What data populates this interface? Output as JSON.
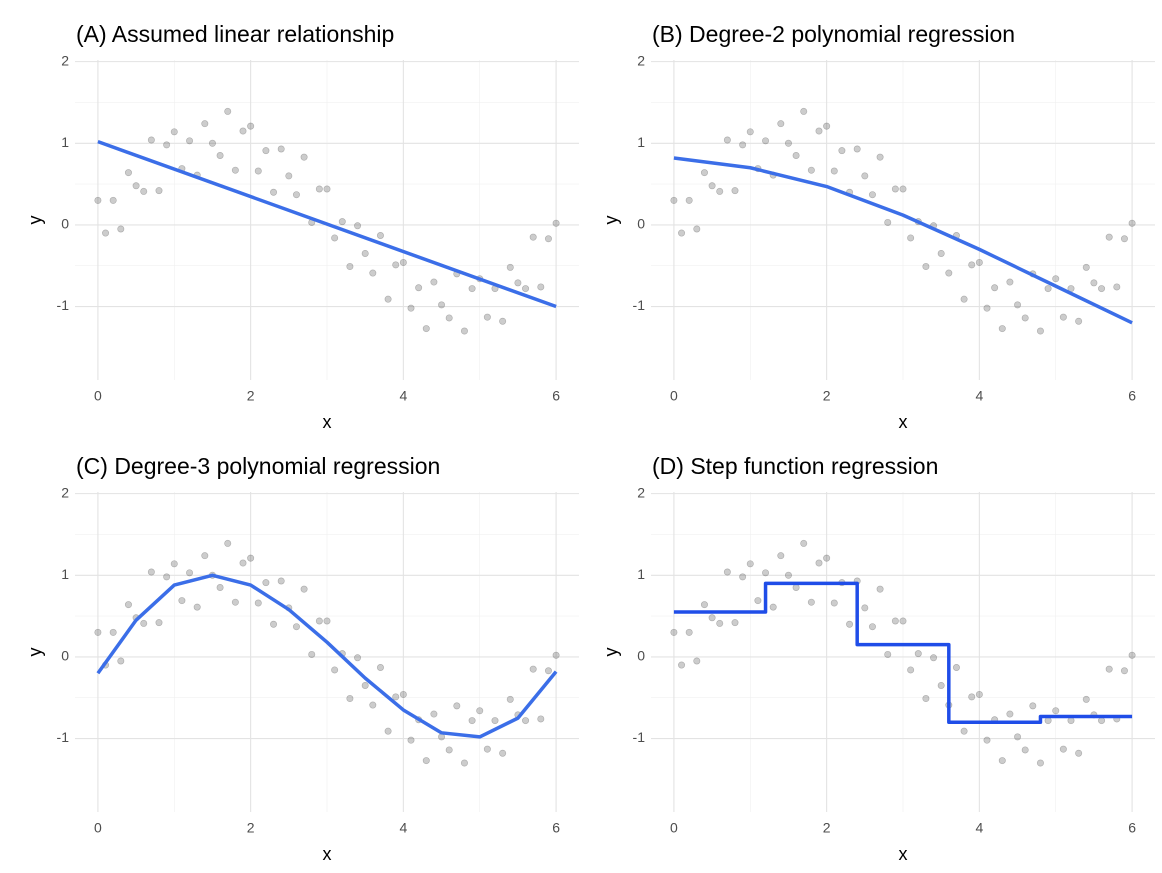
{
  "chart_data": [
    {
      "type": "scatter",
      "title": "(A) Assumed linear relationship",
      "x_label": "x",
      "y_label": "y",
      "xlim": [
        -0.3,
        6.3
      ],
      "ylim": [
        -1.9,
        2.02
      ],
      "xticks": [
        0,
        2,
        4,
        6
      ],
      "yticks": [
        -1,
        0,
        1,
        2
      ],
      "grid": true,
      "points": {
        "color": "#333333",
        "x": [
          0,
          0.1,
          0.2,
          0.3,
          0.4,
          0.5,
          0.6,
          0.7,
          0.8,
          0.9,
          1.0,
          1.1,
          1.2,
          1.3,
          1.4,
          1.5,
          1.6,
          1.7,
          1.8,
          1.9,
          2.0,
          2.1,
          2.2,
          2.3,
          2.4,
          2.5,
          2.6,
          2.7,
          2.8,
          2.9,
          3.0,
          3.1,
          3.2,
          3.3,
          3.4,
          3.5,
          3.6,
          3.7,
          3.8,
          3.9,
          4.0,
          4.1,
          4.2,
          4.3,
          4.4,
          4.5,
          4.6,
          4.7,
          4.8,
          4.9,
          5.0,
          5.1,
          5.2,
          5.3,
          5.4,
          5.5,
          5.6,
          5.7,
          5.8,
          5.9,
          6.0
        ],
        "y": [
          0.3,
          -0.1,
          0.3,
          -0.05,
          0.64,
          0.48,
          0.41,
          1.04,
          0.42,
          0.98,
          1.14,
          0.69,
          1.03,
          0.61,
          1.24,
          1.0,
          0.85,
          1.39,
          0.67,
          1.15,
          1.21,
          0.66,
          0.91,
          0.4,
          0.93,
          0.6,
          0.37,
          0.83,
          0.03,
          0.44,
          0.44,
          -0.16,
          0.04,
          -0.51,
          -0.01,
          -0.35,
          -0.59,
          -0.13,
          -0.91,
          -0.49,
          -0.46,
          -1.02,
          -0.77,
          -1.27,
          -0.7,
          -0.98,
          -1.14,
          -0.6,
          -1.3,
          -0.78,
          -0.66,
          -1.13,
          -0.78,
          -1.18,
          -0.52,
          -0.71,
          -0.78,
          -0.15,
          -0.76,
          -0.17,
          0.02
        ]
      },
      "fit": {
        "color": "#3b6ee8",
        "x": [
          0,
          6
        ],
        "y": [
          1.02,
          -1.0
        ]
      }
    },
    {
      "type": "scatter",
      "title": "(B) Degree-2 polynomial regression",
      "x_label": "x",
      "y_label": "y",
      "xlim": [
        -0.3,
        6.3
      ],
      "ylim": [
        -1.9,
        2.02
      ],
      "xticks": [
        0,
        2,
        4,
        6
      ],
      "yticks": [
        -1,
        0,
        1,
        2
      ],
      "grid": true,
      "points": {
        "color": "#333333",
        "x": [
          0,
          0.1,
          0.2,
          0.3,
          0.4,
          0.5,
          0.6,
          0.7,
          0.8,
          0.9,
          1.0,
          1.1,
          1.2,
          1.3,
          1.4,
          1.5,
          1.6,
          1.7,
          1.8,
          1.9,
          2.0,
          2.1,
          2.2,
          2.3,
          2.4,
          2.5,
          2.6,
          2.7,
          2.8,
          2.9,
          3.0,
          3.1,
          3.2,
          3.3,
          3.4,
          3.5,
          3.6,
          3.7,
          3.8,
          3.9,
          4.0,
          4.1,
          4.2,
          4.3,
          4.4,
          4.5,
          4.6,
          4.7,
          4.8,
          4.9,
          5.0,
          5.1,
          5.2,
          5.3,
          5.4,
          5.5,
          5.6,
          5.7,
          5.8,
          5.9,
          6.0
        ],
        "y": [
          0.3,
          -0.1,
          0.3,
          -0.05,
          0.64,
          0.48,
          0.41,
          1.04,
          0.42,
          0.98,
          1.14,
          0.69,
          1.03,
          0.61,
          1.24,
          1.0,
          0.85,
          1.39,
          0.67,
          1.15,
          1.21,
          0.66,
          0.91,
          0.4,
          0.93,
          0.6,
          0.37,
          0.83,
          0.03,
          0.44,
          0.44,
          -0.16,
          0.04,
          -0.51,
          -0.01,
          -0.35,
          -0.59,
          -0.13,
          -0.91,
          -0.49,
          -0.46,
          -1.02,
          -0.77,
          -1.27,
          -0.7,
          -0.98,
          -1.14,
          -0.6,
          -1.3,
          -0.78,
          -0.66,
          -1.13,
          -0.78,
          -1.18,
          -0.52,
          -0.71,
          -0.78,
          -0.15,
          -0.76,
          -0.17,
          0.02
        ]
      },
      "fit": {
        "color": "#3b6ee8",
        "x": [
          0,
          1,
          2,
          3,
          4,
          5,
          6
        ],
        "y": [
          0.82,
          0.7,
          0.47,
          0.12,
          -0.3,
          -0.75,
          -1.2
        ]
      }
    },
    {
      "type": "scatter",
      "title": "(C) Degree-3 polynomial regression",
      "x_label": "x",
      "y_label": "y",
      "xlim": [
        -0.3,
        6.3
      ],
      "ylim": [
        -1.9,
        2.02
      ],
      "xticks": [
        0,
        2,
        4,
        6
      ],
      "yticks": [
        -1,
        0,
        1,
        2
      ],
      "grid": true,
      "points": {
        "color": "#333333",
        "x": [
          0,
          0.1,
          0.2,
          0.3,
          0.4,
          0.5,
          0.6,
          0.7,
          0.8,
          0.9,
          1.0,
          1.1,
          1.2,
          1.3,
          1.4,
          1.5,
          1.6,
          1.7,
          1.8,
          1.9,
          2.0,
          2.1,
          2.2,
          2.3,
          2.4,
          2.5,
          2.6,
          2.7,
          2.8,
          2.9,
          3.0,
          3.1,
          3.2,
          3.3,
          3.4,
          3.5,
          3.6,
          3.7,
          3.8,
          3.9,
          4.0,
          4.1,
          4.2,
          4.3,
          4.4,
          4.5,
          4.6,
          4.7,
          4.8,
          4.9,
          5.0,
          5.1,
          5.2,
          5.3,
          5.4,
          5.5,
          5.6,
          5.7,
          5.8,
          5.9,
          6.0
        ],
        "y": [
          0.3,
          -0.1,
          0.3,
          -0.05,
          0.64,
          0.48,
          0.41,
          1.04,
          0.42,
          0.98,
          1.14,
          0.69,
          1.03,
          0.61,
          1.24,
          1.0,
          0.85,
          1.39,
          0.67,
          1.15,
          1.21,
          0.66,
          0.91,
          0.4,
          0.93,
          0.6,
          0.37,
          0.83,
          0.03,
          0.44,
          0.44,
          -0.16,
          0.04,
          -0.51,
          -0.01,
          -0.35,
          -0.59,
          -0.13,
          -0.91,
          -0.49,
          -0.46,
          -1.02,
          -0.77,
          -1.27,
          -0.7,
          -0.98,
          -1.14,
          -0.6,
          -1.3,
          -0.78,
          -0.66,
          -1.13,
          -0.78,
          -1.18,
          -0.52,
          -0.71,
          -0.78,
          -0.15,
          -0.76,
          -0.17,
          0.02
        ]
      },
      "fit": {
        "color": "#3b6ee8",
        "x": [
          0,
          0.5,
          1,
          1.5,
          2,
          2.5,
          3,
          3.5,
          4,
          4.5,
          5,
          5.5,
          6
        ],
        "y": [
          -0.2,
          0.45,
          0.88,
          1.0,
          0.88,
          0.58,
          0.18,
          -0.26,
          -0.65,
          -0.93,
          -0.98,
          -0.75,
          -0.18
        ]
      }
    },
    {
      "type": "scatter",
      "title": "(D) Step function regression",
      "x_label": "x",
      "y_label": "y",
      "xlim": [
        -0.3,
        6.3
      ],
      "ylim": [
        -1.9,
        2.02
      ],
      "xticks": [
        0,
        2,
        4,
        6
      ],
      "yticks": [
        -1,
        0,
        1,
        2
      ],
      "grid": true,
      "points": {
        "color": "#333333",
        "x": [
          0,
          0.1,
          0.2,
          0.3,
          0.4,
          0.5,
          0.6,
          0.7,
          0.8,
          0.9,
          1.0,
          1.1,
          1.2,
          1.3,
          1.4,
          1.5,
          1.6,
          1.7,
          1.8,
          1.9,
          2.0,
          2.1,
          2.2,
          2.3,
          2.4,
          2.5,
          2.6,
          2.7,
          2.8,
          2.9,
          3.0,
          3.1,
          3.2,
          3.3,
          3.4,
          3.5,
          3.6,
          3.7,
          3.8,
          3.9,
          4.0,
          4.1,
          4.2,
          4.3,
          4.4,
          4.5,
          4.6,
          4.7,
          4.8,
          4.9,
          5.0,
          5.1,
          5.2,
          5.3,
          5.4,
          5.5,
          5.6,
          5.7,
          5.8,
          5.9,
          6.0
        ],
        "y": [
          0.3,
          -0.1,
          0.3,
          -0.05,
          0.64,
          0.48,
          0.41,
          1.04,
          0.42,
          0.98,
          1.14,
          0.69,
          1.03,
          0.61,
          1.24,
          1.0,
          0.85,
          1.39,
          0.67,
          1.15,
          1.21,
          0.66,
          0.91,
          0.4,
          0.93,
          0.6,
          0.37,
          0.83,
          0.03,
          0.44,
          0.44,
          -0.16,
          0.04,
          -0.51,
          -0.01,
          -0.35,
          -0.59,
          -0.13,
          -0.91,
          -0.49,
          -0.46,
          -1.02,
          -0.77,
          -1.27,
          -0.7,
          -0.98,
          -1.14,
          -0.6,
          -1.3,
          -0.78,
          -0.66,
          -1.13,
          -0.78,
          -1.18,
          -0.52,
          -0.71,
          -0.78,
          -0.15,
          -0.76,
          -0.17,
          0.02
        ]
      },
      "fit": {
        "color": "#1f4de8",
        "x": [
          0,
          1.2,
          1.2,
          2.4,
          2.4,
          3.6,
          3.6,
          4.8,
          4.8,
          6
        ],
        "y": [
          0.55,
          0.55,
          0.9,
          0.9,
          0.15,
          0.15,
          -0.8,
          -0.8,
          -0.73,
          -0.73
        ]
      }
    }
  ]
}
